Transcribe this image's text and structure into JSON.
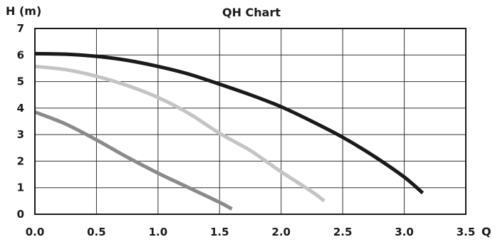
{
  "chart_data": {
    "type": "line",
    "title": "QH Chart",
    "xlabel": "Q",
    "ylabel": "H (m)",
    "xlim": [
      0,
      3.5
    ],
    "ylim": [
      0,
      7
    ],
    "x_ticks": [
      "0.0",
      "0.5",
      "1.0",
      "1.5",
      "2.0",
      "2.5",
      "3.0",
      "3.5"
    ],
    "y_ticks": [
      "0",
      "1",
      "2",
      "3",
      "4",
      "5",
      "6",
      "7"
    ],
    "grid": true,
    "legend": "none",
    "series": [
      {
        "color": "#1a1a1a",
        "points": [
          [
            0.0,
            6.05
          ],
          [
            0.25,
            6.03
          ],
          [
            0.5,
            5.95
          ],
          [
            0.75,
            5.8
          ],
          [
            1.0,
            5.57
          ],
          [
            1.25,
            5.28
          ],
          [
            1.5,
            4.9
          ],
          [
            1.75,
            4.5
          ],
          [
            2.0,
            4.05
          ],
          [
            2.25,
            3.5
          ],
          [
            2.5,
            2.9
          ],
          [
            2.75,
            2.2
          ],
          [
            3.0,
            1.4
          ],
          [
            3.15,
            0.8
          ]
        ]
      },
      {
        "color": "#c4c4c4",
        "points": [
          [
            0.0,
            5.57
          ],
          [
            0.25,
            5.45
          ],
          [
            0.5,
            5.2
          ],
          [
            0.75,
            4.85
          ],
          [
            1.0,
            4.4
          ],
          [
            1.25,
            3.8
          ],
          [
            1.5,
            3.05
          ],
          [
            1.75,
            2.4
          ],
          [
            2.0,
            1.6
          ],
          [
            2.25,
            0.85
          ],
          [
            2.35,
            0.5
          ]
        ]
      },
      {
        "color": "#8a8a8a",
        "points": [
          [
            0.0,
            3.85
          ],
          [
            0.25,
            3.4
          ],
          [
            0.5,
            2.8
          ],
          [
            0.75,
            2.15
          ],
          [
            1.0,
            1.55
          ],
          [
            1.25,
            1.0
          ],
          [
            1.5,
            0.45
          ],
          [
            1.6,
            0.2
          ]
        ]
      }
    ]
  }
}
